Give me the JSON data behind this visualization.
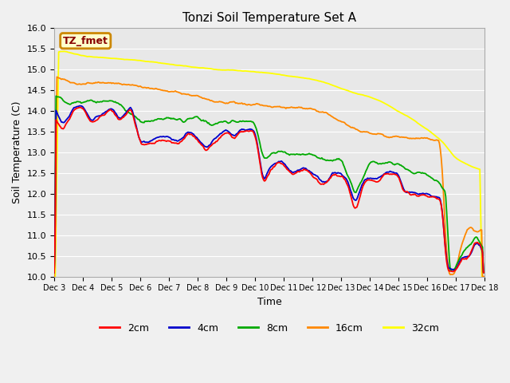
{
  "title": "Tonzi Soil Temperature Set A",
  "xlabel": "Time",
  "ylabel": "Soil Temperature (C)",
  "ylim": [
    10.0,
    16.0
  ],
  "yticks": [
    10.0,
    10.5,
    11.0,
    11.5,
    12.0,
    12.5,
    13.0,
    13.5,
    14.0,
    14.5,
    15.0,
    15.5,
    16.0
  ],
  "fig_bg_color": "#f0f0f0",
  "plot_bg_color": "#e8e8e8",
  "legend_label": "TZ_fmet",
  "legend_box_color": "#ffffcc",
  "legend_box_edge": "#cc8800",
  "series_colors": {
    "2cm": "#ff0000",
    "4cm": "#0000cc",
    "8cm": "#00aa00",
    "16cm": "#ff8800",
    "32cm": "#ffff00"
  },
  "x_tick_labels": [
    "Dec 3",
    "Dec 4",
    "Dec 5",
    "Dec 6",
    "Dec 7",
    "Dec 8",
    "Dec 9",
    "Dec 10",
    "Dec 11",
    "Dec 12",
    "Dec 13",
    "Dec 14",
    "Dec 15",
    "Dec 16",
    "Dec 17",
    "Dec 18"
  ],
  "num_points": 480
}
